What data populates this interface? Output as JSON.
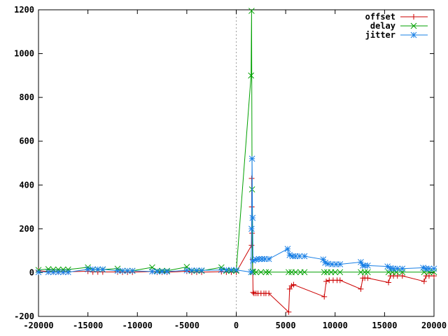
{
  "chart_data": {
    "type": "line",
    "title": "",
    "xlabel": "",
    "ylabel": "",
    "xlim": [
      -20000,
      20000
    ],
    "ylim": [
      -200,
      1200
    ],
    "x_ticks": [
      -20000,
      -15000,
      -10000,
      -5000,
      0,
      5000,
      10000,
      15000,
      20000
    ],
    "y_ticks": [
      -200,
      0,
      200,
      400,
      600,
      800,
      1000,
      1200
    ],
    "x_tick_labels": [
      "-20000",
      "-15000",
      "-10000",
      "-5000",
      "0",
      "5000",
      "10000",
      "15000",
      "20000"
    ],
    "y_tick_labels": [
      "-200",
      "0",
      "200",
      "400",
      "600",
      "800",
      "1000",
      "1200"
    ],
    "grid": false,
    "zero_line": "vertical dashed at x=0",
    "legend_position": "top-right",
    "series": [
      {
        "name": "offset",
        "color": "#cc0000",
        "marker": "plus",
        "points": [
          [
            -20000,
            8
          ],
          [
            -19000,
            5
          ],
          [
            -18500,
            4
          ],
          [
            -18000,
            4
          ],
          [
            -17500,
            4
          ],
          [
            -17000,
            4
          ],
          [
            -15000,
            6
          ],
          [
            -14500,
            3
          ],
          [
            -14000,
            3
          ],
          [
            -13500,
            3
          ],
          [
            -12000,
            3
          ],
          [
            -11500,
            2
          ],
          [
            -11000,
            2
          ],
          [
            -10500,
            2
          ],
          [
            -8500,
            5
          ],
          [
            -8000,
            2
          ],
          [
            -7500,
            2
          ],
          [
            -7000,
            2
          ],
          [
            -5000,
            6
          ],
          [
            -4500,
            2
          ],
          [
            -4000,
            2
          ],
          [
            -3500,
            2
          ],
          [
            -1500,
            4
          ],
          [
            -1000,
            2
          ],
          [
            -500,
            2
          ],
          [
            0,
            2
          ],
          [
            1550,
            125
          ],
          [
            1560,
            430
          ],
          [
            1570,
            300
          ],
          [
            1600,
            180
          ],
          [
            1650,
            60
          ],
          [
            1700,
            -90
          ],
          [
            1800,
            -95
          ],
          [
            2000,
            -95
          ],
          [
            2200,
            -95
          ],
          [
            2500,
            -95
          ],
          [
            2800,
            -95
          ],
          [
            3000,
            -95
          ],
          [
            3300,
            -95
          ],
          [
            5300,
            -180
          ],
          [
            5400,
            -75
          ],
          [
            5600,
            -60
          ],
          [
            5800,
            -55
          ],
          [
            8900,
            -110
          ],
          [
            9100,
            -40
          ],
          [
            9400,
            -35
          ],
          [
            9800,
            -35
          ],
          [
            10200,
            -35
          ],
          [
            10500,
            -35
          ],
          [
            12600,
            -75
          ],
          [
            12800,
            -25
          ],
          [
            13000,
            -25
          ],
          [
            13300,
            -25
          ],
          [
            15400,
            -45
          ],
          [
            15600,
            -15
          ],
          [
            15900,
            -15
          ],
          [
            16300,
            -15
          ],
          [
            16800,
            -15
          ],
          [
            19000,
            -40
          ],
          [
            19200,
            -15
          ],
          [
            19500,
            -15
          ],
          [
            20000,
            -15
          ]
        ]
      },
      {
        "name": "delay",
        "color": "#00a000",
        "marker": "cross",
        "points": [
          [
            -20000,
            12
          ],
          [
            -19000,
            16
          ],
          [
            -18500,
            14
          ],
          [
            -18000,
            14
          ],
          [
            -17500,
            14
          ],
          [
            -17000,
            14
          ],
          [
            -15000,
            24
          ],
          [
            -14500,
            14
          ],
          [
            -14000,
            14
          ],
          [
            -13500,
            14
          ],
          [
            -12000,
            18
          ],
          [
            -11500,
            8
          ],
          [
            -11000,
            8
          ],
          [
            -10500,
            8
          ],
          [
            -8500,
            24
          ],
          [
            -8000,
            8
          ],
          [
            -7500,
            8
          ],
          [
            -7000,
            8
          ],
          [
            -5000,
            26
          ],
          [
            -4500,
            8
          ],
          [
            -4000,
            8
          ],
          [
            -3500,
            8
          ],
          [
            -1500,
            24
          ],
          [
            -1000,
            8
          ],
          [
            -500,
            8
          ],
          [
            0,
            8
          ],
          [
            1500,
            900
          ],
          [
            1550,
            1195
          ],
          [
            1600,
            380
          ],
          [
            1650,
            5
          ],
          [
            1700,
            2
          ],
          [
            2000,
            2
          ],
          [
            2500,
            2
          ],
          [
            3000,
            2
          ],
          [
            3300,
            2
          ],
          [
            5300,
            2
          ],
          [
            5600,
            2
          ],
          [
            6000,
            2
          ],
          [
            6500,
            2
          ],
          [
            6900,
            2
          ],
          [
            8900,
            2
          ],
          [
            9200,
            2
          ],
          [
            9600,
            2
          ],
          [
            10000,
            2
          ],
          [
            10500,
            2
          ],
          [
            12600,
            2
          ],
          [
            13000,
            2
          ],
          [
            13300,
            2
          ],
          [
            15400,
            2
          ],
          [
            15800,
            2
          ],
          [
            16200,
            2
          ],
          [
            16800,
            2
          ],
          [
            19000,
            2
          ],
          [
            19500,
            2
          ],
          [
            20000,
            2
          ]
        ]
      },
      {
        "name": "jitter",
        "color": "#1a80e6",
        "marker": "star",
        "points": [
          [
            -20000,
            2
          ],
          [
            -19000,
            2
          ],
          [
            -18500,
            2
          ],
          [
            -18000,
            2
          ],
          [
            -17500,
            2
          ],
          [
            -17000,
            2
          ],
          [
            -15000,
            15
          ],
          [
            -14500,
            15
          ],
          [
            -14000,
            15
          ],
          [
            -13500,
            15
          ],
          [
            -12000,
            8
          ],
          [
            -11500,
            8
          ],
          [
            -11000,
            8
          ],
          [
            -10500,
            8
          ],
          [
            -8500,
            5
          ],
          [
            -8000,
            5
          ],
          [
            -7500,
            5
          ],
          [
            -7000,
            5
          ],
          [
            -5000,
            10
          ],
          [
            -4500,
            10
          ],
          [
            -4000,
            10
          ],
          [
            -3500,
            10
          ],
          [
            -1500,
            12
          ],
          [
            -1000,
            12
          ],
          [
            -500,
            12
          ],
          [
            0,
            12
          ],
          [
            1500,
            2
          ],
          [
            1550,
            200
          ],
          [
            1600,
            520
          ],
          [
            1650,
            250
          ],
          [
            1700,
            55
          ],
          [
            2000,
            60
          ],
          [
            2300,
            62
          ],
          [
            2600,
            62
          ],
          [
            2900,
            62
          ],
          [
            3300,
            62
          ],
          [
            5200,
            108
          ],
          [
            5400,
            80
          ],
          [
            5700,
            75
          ],
          [
            6000,
            75
          ],
          [
            6400,
            75
          ],
          [
            6900,
            75
          ],
          [
            8800,
            60
          ],
          [
            9000,
            45
          ],
          [
            9300,
            40
          ],
          [
            9700,
            38
          ],
          [
            10100,
            38
          ],
          [
            10500,
            38
          ],
          [
            12600,
            48
          ],
          [
            12800,
            32
          ],
          [
            13000,
            32
          ],
          [
            13300,
            32
          ],
          [
            15300,
            28
          ],
          [
            15600,
            20
          ],
          [
            15900,
            18
          ],
          [
            16300,
            18
          ],
          [
            16800,
            18
          ],
          [
            18900,
            22
          ],
          [
            19200,
            18
          ],
          [
            19500,
            18
          ],
          [
            20000,
            18
          ]
        ]
      }
    ]
  }
}
